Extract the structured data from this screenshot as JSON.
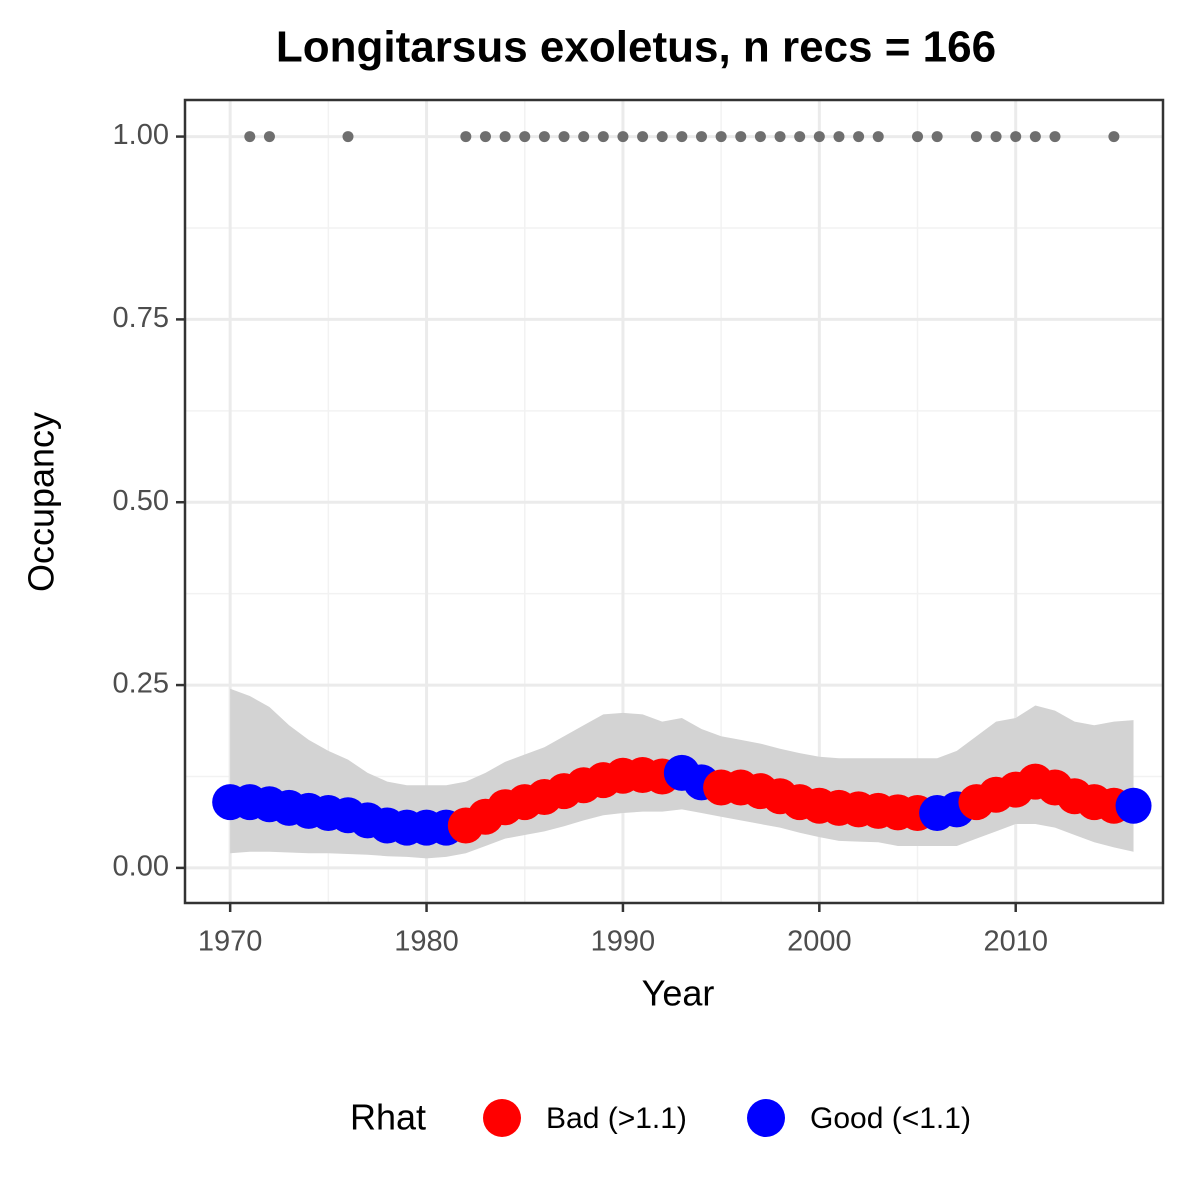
{
  "chart_data": {
    "type": "scatter",
    "title": "Longitarsus exoletus, n recs = 166",
    "xlabel": "Year",
    "ylabel": "Occupancy",
    "legend_title": "Rhat",
    "legend_position": "bottom",
    "grid": true,
    "xlim": [
      1967.7,
      2017.5
    ],
    "ylim": [
      -0.048,
      1.05
    ],
    "xticks": [
      1970,
      1980,
      1990,
      2000,
      2010
    ],
    "yticks": [
      {
        "value": 0,
        "label": "0.00"
      },
      {
        "value": 0.25,
        "label": "0.25"
      },
      {
        "value": 0.5,
        "label": "0.50"
      },
      {
        "value": 0.75,
        "label": "0.75"
      },
      {
        "value": 1,
        "label": "1.00"
      }
    ],
    "ribbon_color": "#d3d3d3",
    "x": [
      1970,
      1971,
      1972,
      1973,
      1974,
      1975,
      1976,
      1977,
      1978,
      1979,
      1980,
      1981,
      1982,
      1983,
      1984,
      1985,
      1986,
      1987,
      1988,
      1989,
      1990,
      1991,
      1992,
      1993,
      1994,
      1995,
      1996,
      1997,
      1998,
      1999,
      2000,
      2001,
      2002,
      2003,
      2004,
      2005,
      2006,
      2007,
      2008,
      2009,
      2010,
      2011,
      2012,
      2013,
      2014,
      2015,
      2016
    ],
    "upper": [
      0.245,
      0.235,
      0.22,
      0.195,
      0.175,
      0.16,
      0.148,
      0.13,
      0.118,
      0.113,
      0.113,
      0.113,
      0.118,
      0.13,
      0.145,
      0.155,
      0.165,
      0.18,
      0.195,
      0.21,
      0.212,
      0.21,
      0.2,
      0.205,
      0.19,
      0.18,
      0.175,
      0.17,
      0.163,
      0.157,
      0.152,
      0.15,
      0.15,
      0.15,
      0.15,
      0.15,
      0.15,
      0.16,
      0.18,
      0.2,
      0.205,
      0.222,
      0.215,
      0.2,
      0.195,
      0.2,
      0.202
    ],
    "lower": [
      0.02,
      0.022,
      0.022,
      0.021,
      0.02,
      0.02,
      0.019,
      0.018,
      0.016,
      0.015,
      0.013,
      0.015,
      0.02,
      0.03,
      0.04,
      0.045,
      0.05,
      0.057,
      0.065,
      0.072,
      0.075,
      0.077,
      0.077,
      0.08,
      0.075,
      0.07,
      0.065,
      0.06,
      0.055,
      0.048,
      0.042,
      0.037,
      0.036,
      0.035,
      0.03,
      0.03,
      0.03,
      0.03,
      0.04,
      0.05,
      0.06,
      0.06,
      0.055,
      0.045,
      0.035,
      0.028,
      0.022
    ],
    "series": [
      {
        "name": "Bad (>1.1)",
        "color": "#ff0000",
        "values": [
          null,
          null,
          null,
          null,
          null,
          null,
          null,
          null,
          null,
          null,
          null,
          null,
          0.058,
          0.07,
          0.083,
          0.09,
          0.097,
          0.105,
          0.113,
          0.12,
          0.126,
          0.127,
          0.125,
          null,
          null,
          0.11,
          0.11,
          0.105,
          0.098,
          0.09,
          0.085,
          0.082,
          0.08,
          0.078,
          0.076,
          0.075,
          null,
          null,
          0.09,
          0.1,
          0.107,
          0.118,
          0.11,
          0.098,
          0.09,
          0.085,
          null
        ]
      },
      {
        "name": "Good (<1.1)",
        "color": "#0000ff",
        "values": [
          0.09,
          0.09,
          0.087,
          0.082,
          0.078,
          0.075,
          0.072,
          0.065,
          0.058,
          0.055,
          0.055,
          0.055,
          null,
          null,
          null,
          null,
          null,
          null,
          null,
          null,
          null,
          null,
          null,
          0.13,
          0.117,
          null,
          null,
          null,
          null,
          null,
          null,
          null,
          null,
          null,
          null,
          null,
          0.075,
          0.08,
          null,
          null,
          null,
          null,
          null,
          null,
          null,
          null,
          0.085
        ]
      }
    ],
    "records": {
      "color": "#6e6e6e",
      "x": [
        1971,
        1972,
        1976,
        1982,
        1983,
        1984,
        1985,
        1986,
        1987,
        1988,
        1989,
        1990,
        1991,
        1992,
        1993,
        1994,
        1995,
        1996,
        1997,
        1998,
        1999,
        2000,
        2001,
        2002,
        2003,
        2005,
        2006,
        2008,
        2009,
        2010,
        2011,
        2012,
        2015
      ],
      "values": [
        1,
        1,
        1,
        1,
        1,
        1,
        1,
        1,
        1,
        1,
        1,
        1,
        1,
        1,
        1,
        1,
        1,
        1,
        1,
        1,
        1,
        1,
        1,
        1,
        1,
        1,
        1,
        1,
        1,
        1,
        1,
        1,
        1
      ]
    }
  }
}
